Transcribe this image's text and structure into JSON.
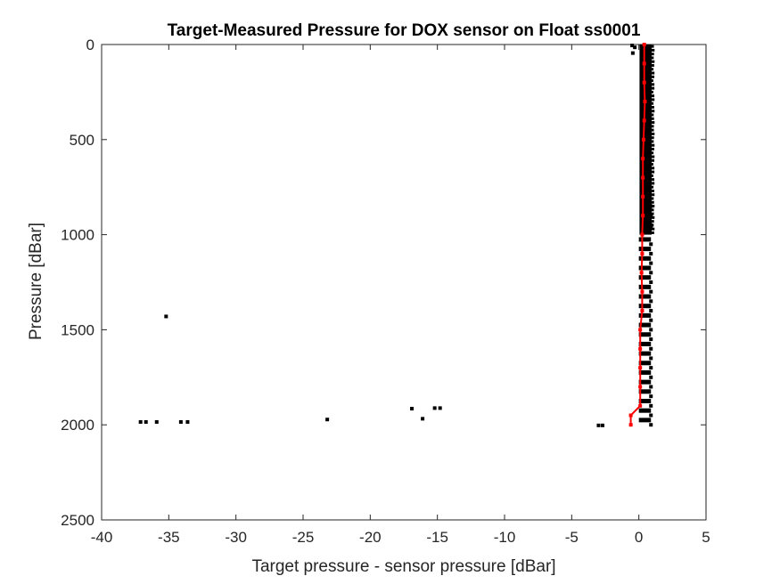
{
  "chart_data": {
    "type": "scatter",
    "title": "Target-Measured Pressure for DOX sensor on Float ss0001",
    "xlabel": "Target pressure - sensor pressure [dBar]",
    "ylabel": "Pressure [dBar]",
    "xlim": [
      -40,
      5
    ],
    "ylim": [
      0,
      2500
    ],
    "y_reversed": true,
    "grid": false,
    "x_ticks": [
      -40,
      -35,
      -30,
      -25,
      -20,
      -15,
      -10,
      -5,
      0,
      5
    ],
    "y_ticks": [
      0,
      500,
      1000,
      1500,
      2000,
      2500
    ],
    "colors": {
      "points": "#000000",
      "median_line": "#ff0000",
      "axes": "#262626"
    },
    "series": [
      {
        "type": "scatter",
        "color": "#000000",
        "points": [
          [
            -35.2,
            1430
          ],
          [
            -37.1,
            1985
          ],
          [
            -36.7,
            1985
          ],
          [
            -35.9,
            1985
          ],
          [
            -34.1,
            1985
          ],
          [
            -33.6,
            1985
          ],
          [
            -23.2,
            1972
          ],
          [
            -16.9,
            1915
          ],
          [
            -16.1,
            1968
          ],
          [
            -15.2,
            1912
          ],
          [
            -14.8,
            1912
          ],
          [
            -3.0,
            2003
          ],
          [
            -2.7,
            2003
          ],
          [
            -0.5,
            5
          ],
          [
            -0.45,
            45
          ],
          [
            -0.3,
            15
          ],
          [
            0.9,
            850
          ],
          [
            0.9,
            900
          ],
          [
            0.9,
            950
          ],
          [
            0.9,
            960
          ],
          [
            0.9,
            1050
          ],
          [
            0.9,
            1100
          ],
          [
            0.9,
            1150
          ],
          [
            0.9,
            1200
          ],
          [
            0.9,
            1250
          ],
          [
            0.9,
            1300
          ],
          [
            0.9,
            1350
          ],
          [
            0.9,
            1400
          ],
          [
            0.9,
            1450
          ],
          [
            0.9,
            1500
          ],
          [
            0.9,
            1550
          ],
          [
            0.9,
            1600
          ],
          [
            0.9,
            1650
          ],
          [
            0.9,
            1700
          ],
          [
            0.9,
            1750
          ],
          [
            0.9,
            1800
          ],
          [
            0.9,
            1850
          ],
          [
            0.9,
            1900
          ],
          [
            0.9,
            1950
          ],
          [
            0.9,
            2000
          ]
        ]
      },
      {
        "type": "line",
        "color": "#ff0000",
        "points": [
          [
            0.4,
            0
          ],
          [
            0.4,
            100
          ],
          [
            0.4,
            200
          ],
          [
            0.45,
            300
          ],
          [
            0.4,
            400
          ],
          [
            0.35,
            500
          ],
          [
            0.3,
            600
          ],
          [
            0.3,
            700
          ],
          [
            0.3,
            800
          ],
          [
            0.3,
            900
          ],
          [
            0.25,
            1000
          ],
          [
            0.25,
            1100
          ],
          [
            0.2,
            1200
          ],
          [
            0.25,
            1300
          ],
          [
            0.25,
            1400
          ],
          [
            0.1,
            1500
          ],
          [
            0.1,
            1600
          ],
          [
            0.1,
            1700
          ],
          [
            0.1,
            1800
          ],
          [
            0.1,
            1900
          ],
          [
            -0.6,
            1950
          ],
          [
            -0.6,
            2000
          ]
        ]
      }
    ],
    "bands": [
      {
        "from_y": 0,
        "to_y": 1000,
        "x_min": 0.05,
        "x_max": 0.95,
        "color": "#000000"
      },
      {
        "from_y": 1000,
        "to_y": 2000,
        "x_min": 0.0,
        "x_max": 0.9,
        "color": "#000000",
        "dashed": true
      }
    ]
  }
}
